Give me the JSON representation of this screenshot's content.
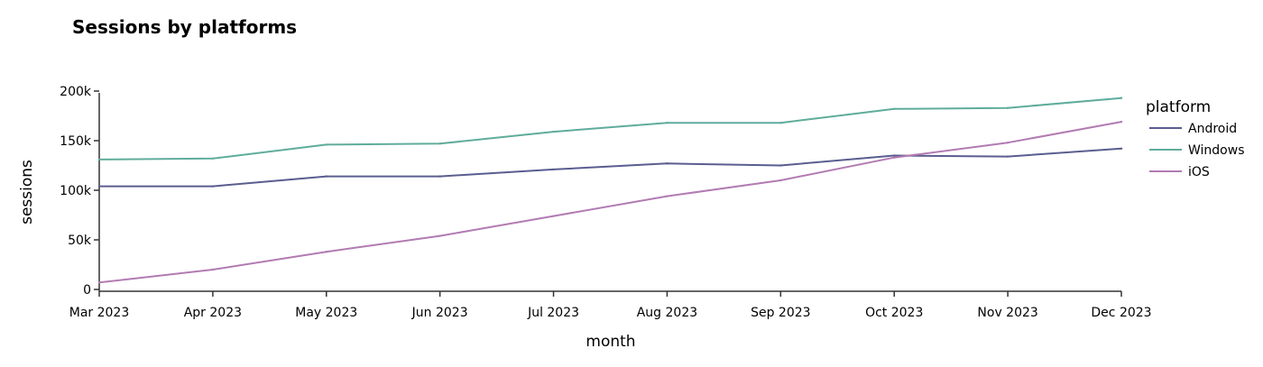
{
  "chart_data": {
    "type": "line",
    "title": "Sessions by platforms",
    "xlabel": "month",
    "ylabel": "sessions",
    "categories": [
      "Mar 2023",
      "Apr 2023",
      "May 2023",
      "Jun 2023",
      "Jul 2023",
      "Aug 2023",
      "Sep 2023",
      "Oct 2023",
      "Nov 2023",
      "Dec 2023"
    ],
    "ylim": [
      0,
      200000
    ],
    "yticks": [
      0,
      50000,
      100000,
      150000,
      200000
    ],
    "ytick_labels": [
      "0",
      "50k",
      "100k",
      "150k",
      "200k"
    ],
    "grid": false,
    "legend": {
      "title": "platform",
      "position": "right"
    },
    "series": [
      {
        "name": "Android",
        "color": "#5a5d8f",
        "values": [
          104000,
          104000,
          114000,
          114000,
          121000,
          127000,
          125000,
          135000,
          134000,
          142000
        ]
      },
      {
        "name": "Windows",
        "color": "#5fac9c",
        "values": [
          131000,
          132000,
          146000,
          147000,
          159000,
          168000,
          168000,
          182000,
          183000,
          193000
        ]
      },
      {
        "name": "iOS",
        "color": "#b27bb2",
        "values": [
          7000,
          20000,
          38000,
          54000,
          74000,
          94000,
          110000,
          133000,
          148000,
          169000
        ]
      }
    ]
  }
}
